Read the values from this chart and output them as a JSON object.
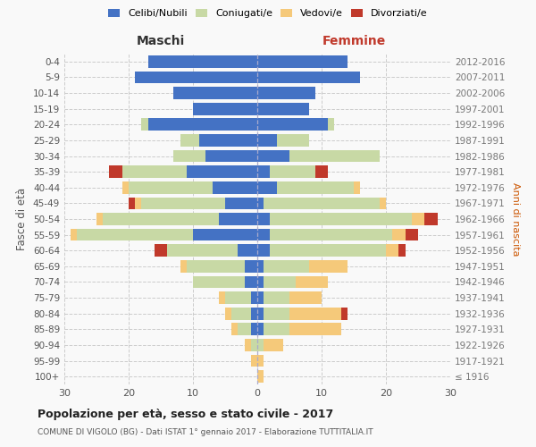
{
  "age_groups": [
    "100+",
    "95-99",
    "90-94",
    "85-89",
    "80-84",
    "75-79",
    "70-74",
    "65-69",
    "60-64",
    "55-59",
    "50-54",
    "45-49",
    "40-44",
    "35-39",
    "30-34",
    "25-29",
    "20-24",
    "15-19",
    "10-14",
    "5-9",
    "0-4"
  ],
  "birth_years": [
    "≤ 1916",
    "1917-1921",
    "1922-1926",
    "1927-1931",
    "1932-1936",
    "1937-1941",
    "1942-1946",
    "1947-1951",
    "1952-1956",
    "1957-1961",
    "1962-1966",
    "1967-1971",
    "1972-1976",
    "1977-1981",
    "1982-1986",
    "1987-1991",
    "1992-1996",
    "1997-2001",
    "2002-2006",
    "2007-2011",
    "2012-2016"
  ],
  "maschi": {
    "celibi": [
      0,
      0,
      0,
      1,
      1,
      1,
      2,
      2,
      3,
      10,
      6,
      5,
      7,
      11,
      8,
      9,
      17,
      10,
      13,
      19,
      17
    ],
    "coniugati": [
      0,
      0,
      1,
      2,
      3,
      4,
      8,
      9,
      11,
      18,
      18,
      13,
      13,
      10,
      5,
      3,
      1,
      0,
      0,
      0,
      0
    ],
    "vedovi": [
      0,
      1,
      1,
      1,
      1,
      1,
      0,
      1,
      0,
      1,
      1,
      1,
      1,
      0,
      0,
      0,
      0,
      0,
      0,
      0,
      0
    ],
    "divorziati": [
      0,
      0,
      0,
      0,
      0,
      0,
      0,
      0,
      2,
      0,
      0,
      1,
      0,
      2,
      0,
      0,
      0,
      0,
      0,
      0,
      0
    ]
  },
  "femmine": {
    "nubili": [
      0,
      0,
      0,
      1,
      1,
      1,
      1,
      1,
      2,
      2,
      2,
      1,
      3,
      2,
      5,
      3,
      11,
      8,
      9,
      16,
      14
    ],
    "coniugate": [
      0,
      0,
      1,
      4,
      4,
      4,
      5,
      7,
      18,
      19,
      22,
      18,
      12,
      7,
      14,
      5,
      1,
      0,
      0,
      0,
      0
    ],
    "vedove": [
      1,
      1,
      3,
      8,
      8,
      5,
      5,
      6,
      2,
      2,
      2,
      1,
      1,
      0,
      0,
      0,
      0,
      0,
      0,
      0,
      0
    ],
    "divorziate": [
      0,
      0,
      0,
      0,
      1,
      0,
      0,
      0,
      1,
      2,
      2,
      0,
      0,
      2,
      0,
      0,
      0,
      0,
      0,
      0,
      0
    ]
  },
  "colors": {
    "celibi": "#4472c4",
    "coniugati": "#c8d9a5",
    "vedovi": "#f5c97a",
    "divorziati": "#c0392b"
  },
  "title": "Popolazione per età, sesso e stato civile - 2017",
  "subtitle": "COMUNE DI VIGOLO (BG) - Dati ISTAT 1° gennaio 2017 - Elaborazione TUTTITALIA.IT",
  "xlabel_left": "Maschi",
  "xlabel_right": "Femmine",
  "ylabel_left": "Fasce di età",
  "ylabel_right": "Anni di nascita",
  "xlim": 30,
  "bg_color": "#f9f9f9",
  "grid_color": "#cccccc"
}
